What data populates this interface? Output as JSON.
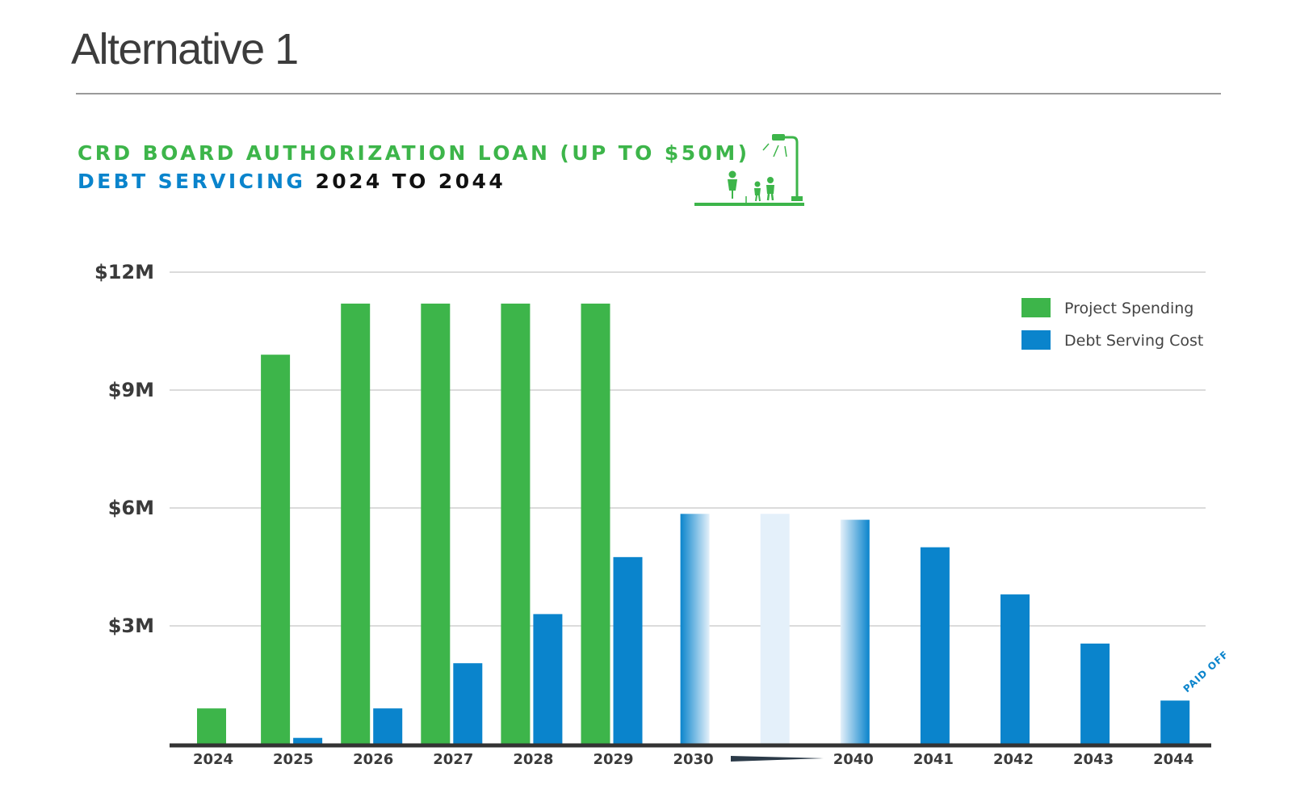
{
  "page": {
    "title": "Alternative 1"
  },
  "heading": {
    "line1": "CRD BOARD AUTHORIZATION LOAN (UP TO $50M)",
    "line2_blue": "DEBT SERVICING",
    "line2_dark": "2024 TO 2044"
  },
  "illustration_icon": "people-with-streetlight-icon",
  "colors": {
    "project": "#3db54a",
    "debt": "#0a84cc",
    "grid": "#cfcfcf",
    "axis": "#333333"
  },
  "chart_data": {
    "type": "bar",
    "categories": [
      "2024",
      "2025",
      "2026",
      "2027",
      "2028",
      "2029",
      "2030",
      "",
      "2040",
      "2041",
      "2042",
      "2043",
      "2044"
    ],
    "series": [
      {
        "name": "Project Spending",
        "color": "#3db54a",
        "values": [
          0.9,
          9.9,
          11.2,
          11.2,
          11.2,
          11.2,
          null,
          null,
          null,
          null,
          null,
          null,
          null
        ]
      },
      {
        "name": "Debt Serving Cost",
        "color": "#0a84cc",
        "values": [
          null,
          0.15,
          0.9,
          2.05,
          3.3,
          4.75,
          5.85,
          5.85,
          5.7,
          5.0,
          3.8,
          2.55,
          1.1
        ]
      }
    ],
    "yticks": [
      "$12M",
      "$9M",
      "$6M",
      "$3M"
    ],
    "ytick_values": [
      12,
      9,
      6,
      3
    ],
    "ylim": [
      0,
      12
    ],
    "grid": true,
    "legend_position": "top-right",
    "annotations": [
      {
        "text": "PAID OFF",
        "category": "2044"
      }
    ]
  }
}
